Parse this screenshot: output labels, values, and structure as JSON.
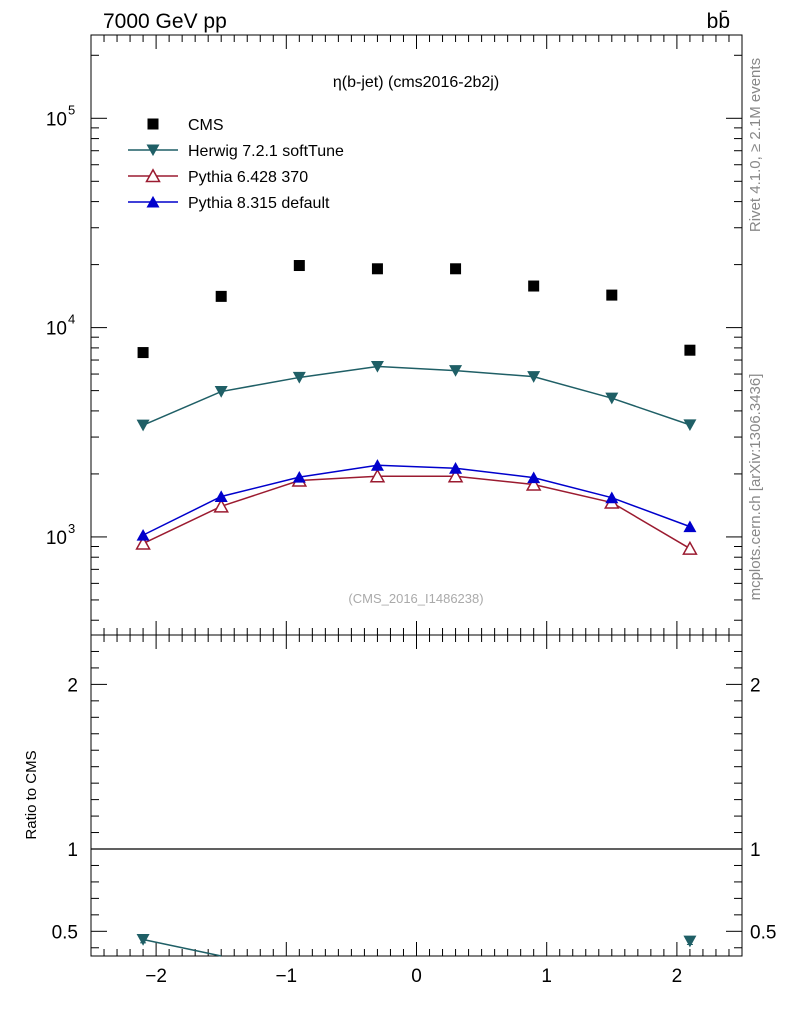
{
  "header": {
    "energy": "7000 GeV pp",
    "process": "bb̄"
  },
  "side_labels": {
    "rivet": "Rivet 4.1.0, ≥ 2.1M events",
    "mcplots": "mcplots.cern.ch [arXiv:1306.3436]"
  },
  "chart_data": [
    {
      "type": "scatter",
      "title": "η(b-jet) (cms2016-2b2j)",
      "watermark": "(CMS_2016_I1486238)",
      "yscale": "log",
      "xlim": [
        -2.5,
        2.5
      ],
      "ylim": [
        340,
        250000
      ],
      "yticks": [
        {
          "value": 1000,
          "base": "10",
          "exp": "3"
        },
        {
          "value": 10000,
          "base": "10",
          "exp": "4"
        },
        {
          "value": 100000,
          "base": "10",
          "exp": "5"
        }
      ],
      "x": [
        -2.1,
        -1.5,
        -0.9,
        -0.3,
        0.3,
        0.9,
        1.5,
        2.1
      ],
      "legend_position": "top-left",
      "series": [
        {
          "name": "CMS",
          "marker": "square",
          "color": "#000000",
          "line": false,
          "values": [
            7600,
            14100,
            19800,
            19100,
            19100,
            15800,
            14300,
            7800
          ]
        },
        {
          "name": "Herwig 7.2.1 softTune",
          "marker": "triangle-down",
          "color": "#1f5f66",
          "line": true,
          "values": [
            3420,
            4950,
            5780,
            6520,
            6230,
            5830,
            4600,
            3430
          ]
        },
        {
          "name": "Pythia 6.428 370",
          "marker": "triangle-up-open",
          "color": "#9b1b30",
          "line": true,
          "values": [
            930,
            1400,
            1860,
            1950,
            1950,
            1780,
            1460,
            880
          ]
        },
        {
          "name": "Pythia 8.315 default",
          "marker": "triangle-up",
          "color": "#0000cc",
          "line": true,
          "values": [
            1020,
            1560,
            1930,
            2200,
            2130,
            1920,
            1540,
            1120
          ]
        }
      ]
    },
    {
      "type": "line",
      "ylabel": "Ratio to CMS",
      "ylim": [
        0.35,
        2.3
      ],
      "yticks": [
        0.5,
        1,
        2
      ],
      "ytick_labels": [
        "0.5",
        "1",
        "2"
      ],
      "xticks": [
        -2,
        -1,
        0,
        1,
        2
      ],
      "xtick_labels": [
        "−2",
        "−1",
        "0",
        "1",
        "2"
      ],
      "reference_line": 1,
      "series": [
        {
          "name": "Herwig 7.2.1 softTune",
          "color": "#1f5f66",
          "x": [
            -2.1,
            2.1
          ],
          "values": [
            0.45,
            0.44
          ],
          "errors": [
            0.02,
            0.02
          ],
          "trend_to": [
            [
              -1.5,
              0.35
            ],
            [
              2.1,
              0.44
            ]
          ]
        }
      ]
    }
  ]
}
